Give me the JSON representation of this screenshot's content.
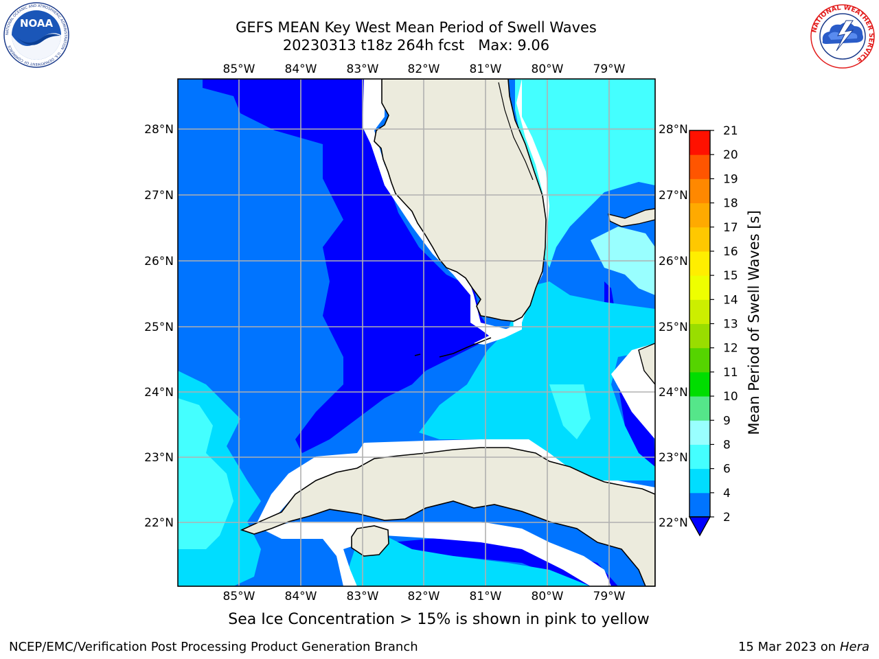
{
  "title": {
    "line1": "GEFS MEAN Key West Mean Period of Swell Waves",
    "line2": "20230313 t18z 264h fcst   Max: 9.06"
  },
  "logos": {
    "left_icon": "noaa-logo-icon",
    "left_text": "NOAA",
    "left_ring_text": "NATIONAL OCEANIC AND ATMOSPHERIC ADMINISTRATION · U.S. DEPARTMENT OF COMMERCE",
    "right_icon": "nws-logo-icon",
    "right_ring_text": "NATIONAL WEATHER SERVICE"
  },
  "map": {
    "lon_labels": [
      "85°W",
      "84°W",
      "83°W",
      "82°W",
      "81°W",
      "80°W",
      "79°W"
    ],
    "lat_labels": [
      "28°N",
      "27°N",
      "26°N",
      "25°N",
      "24°N",
      "23°N",
      "22°N"
    ],
    "colors": {
      "land": "#ecebdd",
      "no_data": "#ffffff",
      "grid": "#b0b0b0"
    }
  },
  "colorbar": {
    "label": "Mean Period of Swell Waves [s]",
    "ticks": [
      "2",
      "4",
      "6",
      "8",
      "9",
      "10",
      "11",
      "12",
      "13",
      "14",
      "15",
      "16",
      "17",
      "18",
      "19",
      "20",
      "21"
    ],
    "levels": [
      {
        "from": 2,
        "to": 4,
        "color": "#0074ff"
      },
      {
        "from": 4,
        "to": 6,
        "color": "#00ddff"
      },
      {
        "from": 6,
        "to": 8,
        "color": "#44ffff"
      },
      {
        "from": 8,
        "to": 9,
        "color": "#99ffff"
      },
      {
        "from": 9,
        "to": 10,
        "color": "#55e68a"
      },
      {
        "from": 10,
        "to": 11,
        "color": "#00dd00"
      },
      {
        "from": 11,
        "to": 12,
        "color": "#55d400"
      },
      {
        "from": 12,
        "to": 13,
        "color": "#99dd00"
      },
      {
        "from": 13,
        "to": 14,
        "color": "#ccee00"
      },
      {
        "from": 14,
        "to": 15,
        "color": "#eeff00"
      },
      {
        "from": 15,
        "to": 16,
        "color": "#ffee00"
      },
      {
        "from": 16,
        "to": 17,
        "color": "#ffc800"
      },
      {
        "from": 17,
        "to": 18,
        "color": "#ffaa00"
      },
      {
        "from": 18,
        "to": 19,
        "color": "#ff8800"
      },
      {
        "from": 19,
        "to": 20,
        "color": "#ff5500"
      },
      {
        "from": 20,
        "to": 21,
        "color": "#ff1100"
      }
    ],
    "under_color": "#0000ff"
  },
  "caption": "Sea Ice Concentration > 15% is shown in pink to yellow",
  "footer": {
    "left": "NCEP/EMC/Verification Post Processing Product Generation Branch",
    "right_prefix": "15 Mar 2023 on",
    "right_host": "Hera"
  }
}
